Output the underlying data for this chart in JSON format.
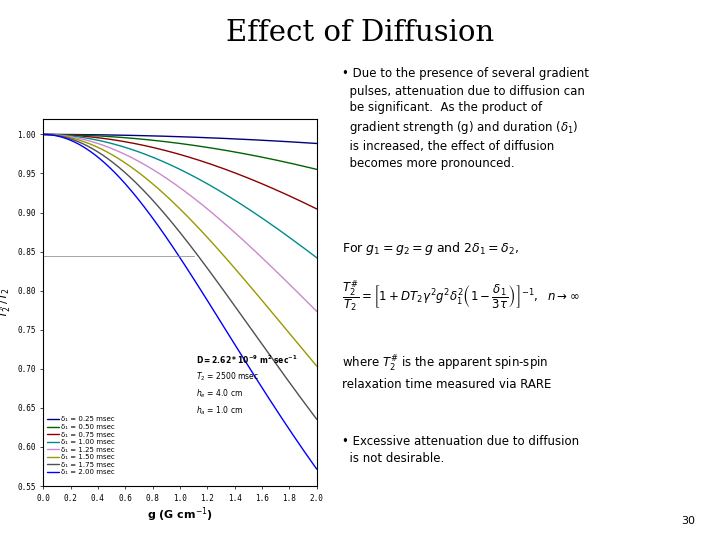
{
  "title": "Effect of Diffusion",
  "bg_color": "#ffffff",
  "xlim": [
    0.0,
    2.0
  ],
  "ylim": [
    0.55,
    1.02
  ],
  "yticks": [
    0.55,
    0.6,
    0.65,
    0.7,
    0.75,
    0.8,
    0.85,
    0.9,
    0.95,
    1.0
  ],
  "xticks": [
    0.0,
    0.2,
    0.4,
    0.6,
    0.8,
    1.0,
    1.2,
    1.4,
    1.6,
    1.8,
    2.0
  ],
  "D_m2s": 2.62e-09,
  "T2_ms": 2500,
  "delta1_values_ms": [
    0.25,
    0.5,
    0.75,
    1.0,
    1.25,
    1.5,
    1.75,
    2.0
  ],
  "line_colors": [
    "#000080",
    "#006400",
    "#8B0000",
    "#008B8B",
    "#CC88CC",
    "#999900",
    "#505050",
    "#0000FF"
  ],
  "line_labels": [
    "δ₁ = 0.25 msec",
    "δ₁ = 0.50 msec",
    "δ₁ = 0.75 msec",
    "δ₁ = 1.00 msec",
    "δ₁ = 1.25 msec",
    "δ₁ = 1.50 msec",
    "δ₁ = 1.75 msec",
    "δ₁ = 2.00 msec"
  ],
  "page_num": "30"
}
